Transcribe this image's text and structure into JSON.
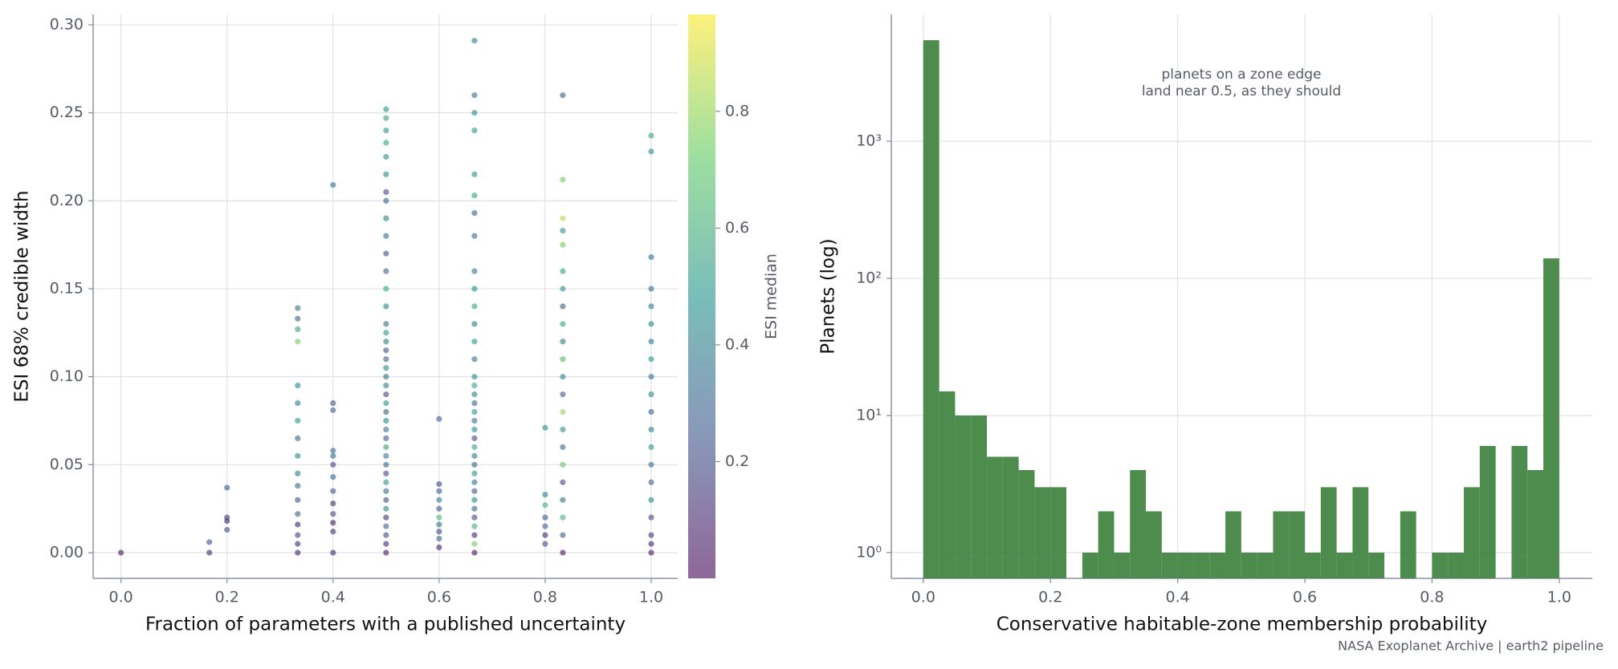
{
  "chart_data": [
    {
      "type": "scatter",
      "x_label": "Fraction of parameters with a published uncertainty",
      "y_label": "ESI 68% credible width",
      "xlim": [
        -0.0525,
        1.05
      ],
      "ylim": [
        -0.0146,
        0.3059
      ],
      "xticks": [
        {
          "value": 0,
          "label": "0.0"
        },
        0.2,
        0.4,
        0.6,
        0.8,
        {
          "value": 1,
          "label": "1.0"
        }
      ],
      "yticks": [
        {
          "value": 0,
          "label": "0.00"
        },
        {
          "value": 0.05,
          "label": "0.05"
        },
        {
          "value": 0.1,
          "label": "0.10"
        },
        {
          "value": 0.15,
          "label": "0.15"
        },
        {
          "value": 0.2,
          "label": "0.20"
        },
        {
          "value": 0.25,
          "label": "0.25"
        },
        {
          "value": 0.3,
          "label": "0.30"
        }
      ],
      "grid": true,
      "colormap": "viridis",
      "colorbar": {
        "label": "ESI median",
        "lim": [
          0,
          0.966
        ],
        "ticks": [
          0.2,
          0.4,
          0.6,
          0.8
        ]
      },
      "x": [
        0,
        0.1667,
        0.1667,
        0.2,
        0.2,
        0.2,
        0.2,
        0.3333,
        0.3333,
        0.3333,
        0.3333,
        0.3333,
        0.3333,
        0.3333,
        0.3333,
        0.3333,
        0.3333,
        0.3333,
        0.3333,
        0.3333,
        0.3333,
        0.3333,
        0.3333,
        0.3333,
        0.4,
        0.4,
        0.4,
        0.4,
        0.4,
        0.4,
        0.4,
        0.4,
        0.4,
        0.4,
        0.4,
        0.4,
        0.4,
        0.5,
        0.5,
        0.5,
        0.5,
        0.5,
        0.5,
        0.5,
        0.5,
        0.5,
        0.5,
        0.5,
        0.5,
        0.5,
        0.5,
        0.5,
        0.5,
        0.5,
        0.5,
        0.5,
        0.5,
        0.5,
        0.5,
        0.5,
        0.5,
        0.5,
        0.5,
        0.5,
        0.5,
        0.5,
        0.5,
        0.5,
        0.5,
        0.5,
        0.5,
        0.5,
        0.5,
        0.5,
        0.5,
        0.5,
        0.5,
        0.5,
        0.6,
        0.6,
        0.6,
        0.6,
        0.6,
        0.6,
        0.6,
        0.6,
        0.6,
        0.6,
        0.6667,
        0.6667,
        0.6667,
        0.6667,
        0.6667,
        0.6667,
        0.6667,
        0.6667,
        0.6667,
        0.6667,
        0.6667,
        0.6667,
        0.6667,
        0.6667,
        0.6667,
        0.6667,
        0.6667,
        0.6667,
        0.6667,
        0.6667,
        0.6667,
        0.6667,
        0.6667,
        0.6667,
        0.6667,
        0.6667,
        0.6667,
        0.6667,
        0.6667,
        0.6667,
        0.6667,
        0.6667,
        0.6667,
        0.6667,
        0.6667,
        0.8,
        0.8,
        0.8,
        0.8,
        0.8,
        0.8,
        0.8,
        0.8333,
        0.8333,
        0.8333,
        0.8333,
        0.8333,
        0.8333,
        0.8333,
        0.8333,
        0.8333,
        0.8333,
        0.8333,
        0.8333,
        0.8333,
        0.8333,
        0.8333,
        0.8333,
        0.8333,
        0.8333,
        0.8333,
        0.8333,
        0.8333,
        0.8333,
        1.0,
        1.0,
        1.0,
        1.0,
        1.0,
        1.0,
        1.0,
        1.0,
        1.0,
        1.0,
        1.0,
        1.0,
        1.0,
        1.0,
        1.0,
        1.0,
        1.0,
        1.0,
        1.0,
        1.0
      ],
      "y": [
        0,
        0,
        0.006,
        0.013,
        0.018,
        0.02,
        0.037,
        0,
        0.005,
        0.01,
        0.016,
        0.022,
        0.03,
        0.038,
        0.045,
        0.055,
        0.065,
        0.075,
        0.085,
        0.095,
        0.12,
        0.127,
        0.133,
        0.139,
        0,
        0.012,
        0.017,
        0.022,
        0.028,
        0.035,
        0.043,
        0.05,
        0.055,
        0.058,
        0.081,
        0.085,
        0.209,
        0,
        0.005,
        0.01,
        0.015,
        0.02,
        0.025,
        0.03,
        0.035,
        0.04,
        0.045,
        0.05,
        0.055,
        0.06,
        0.065,
        0.07,
        0.075,
        0.08,
        0.085,
        0.09,
        0.095,
        0.1,
        0.105,
        0.11,
        0.115,
        0.12,
        0.125,
        0.13,
        0.14,
        0.15,
        0.16,
        0.17,
        0.18,
        0.19,
        0.2,
        0.205,
        0.215,
        0.225,
        0.233,
        0.24,
        0.247,
        0.252,
        0.003,
        0.008,
        0.012,
        0.016,
        0.02,
        0.025,
        0.03,
        0.035,
        0.039,
        0.076,
        0,
        0.005,
        0.01,
        0.015,
        0.02,
        0.025,
        0.03,
        0.035,
        0.04,
        0.045,
        0.05,
        0.055,
        0.06,
        0.065,
        0.07,
        0.075,
        0.08,
        0.085,
        0.09,
        0.095,
        0.1,
        0.11,
        0.12,
        0.13,
        0.14,
        0.15,
        0.16,
        0.18,
        0.193,
        0.203,
        0.215,
        0.24,
        0.25,
        0.26,
        0.291,
        0.005,
        0.01,
        0.015,
        0.02,
        0.027,
        0.033,
        0.071,
        0,
        0.01,
        0.02,
        0.03,
        0.04,
        0.05,
        0.06,
        0.07,
        0.08,
        0.09,
        0.1,
        0.11,
        0.12,
        0.13,
        0.14,
        0.15,
        0.16,
        0.175,
        0.183,
        0.19,
        0.212,
        0.26,
        0,
        0.005,
        0.01,
        0.02,
        0.03,
        0.04,
        0.05,
        0.06,
        0.07,
        0.08,
        0.09,
        0.1,
        0.11,
        0.12,
        0.13,
        0.14,
        0.15,
        0.168,
        0.228,
        0.237
      ],
      "color_values": [
        0.05,
        0.1,
        0.25,
        0.2,
        0.1,
        0.15,
        0.25,
        0.08,
        0.12,
        0.18,
        0.1,
        0.3,
        0.25,
        0.35,
        0.4,
        0.45,
        0.3,
        0.5,
        0.4,
        0.45,
        0.75,
        0.55,
        0.3,
        0.35,
        0.1,
        0.15,
        0.05,
        0.2,
        0.12,
        0.25,
        0.3,
        0.2,
        0.35,
        0.3,
        0.3,
        0.25,
        0.35,
        0.05,
        0.1,
        0.2,
        0.3,
        0.15,
        0.45,
        0.25,
        0.35,
        0.5,
        0.2,
        0.3,
        0.4,
        0.55,
        0.25,
        0.35,
        0.45,
        0.3,
        0.5,
        0.2,
        0.4,
        0.35,
        0.45,
        0.3,
        0.25,
        0.4,
        0.5,
        0.35,
        0.45,
        0.55,
        0.3,
        0.25,
        0.35,
        0.4,
        0.3,
        0.2,
        0.45,
        0.5,
        0.55,
        0.5,
        0.55,
        0.5,
        0.1,
        0.3,
        0.2,
        0.35,
        0.65,
        0.25,
        0.4,
        0.3,
        0.2,
        0.3,
        0.05,
        0.75,
        0.1,
        0.6,
        0.2,
        0.3,
        0.45,
        0.25,
        0.35,
        0.5,
        0.3,
        0.4,
        0.55,
        0.2,
        0.45,
        0.35,
        0.5,
        0.3,
        0.4,
        0.55,
        0.45,
        0.35,
        0.5,
        0.4,
        0.55,
        0.45,
        0.4,
        0.35,
        0.3,
        0.55,
        0.5,
        0.5,
        0.45,
        0.35,
        0.4,
        0.2,
        0.1,
        0.3,
        0.25,
        0.6,
        0.4,
        0.45,
        0.05,
        0.3,
        0.6,
        0.4,
        0.2,
        0.7,
        0.35,
        0.5,
        0.8,
        0.3,
        0.45,
        0.65,
        0.4,
        0.55,
        0.3,
        0.5,
        0.55,
        0.75,
        0.5,
        0.85,
        0.75,
        0.3,
        0.05,
        0.1,
        0.15,
        0.2,
        0.45,
        0.3,
        0.35,
        0.5,
        0.4,
        0.3,
        0.45,
        0.35,
        0.5,
        0.4,
        0.45,
        0.4,
        0.35,
        0.35,
        0.45,
        0.55
      ]
    },
    {
      "type": "histogram",
      "x_label": "Conservative habitable-zone membership probability",
      "y_label": "Planets (log)",
      "annotation": [
        "planets on a zone edge",
        "land near 0.5, as they should"
      ],
      "source": "NASA Exoplanet Archive | earth2 pipeline",
      "log_y": true,
      "color": "#3b7f3b",
      "xlim": [
        -0.0503,
        1.052
      ],
      "ylim": [
        0.649,
        8414
      ],
      "xticks": [
        {
          "value": 0,
          "label": "0.0"
        },
        0.2,
        0.4,
        0.6,
        0.8,
        {
          "value": 1,
          "label": "1.0"
        }
      ],
      "yticks": [
        {
          "value": 1,
          "label": "10⁰"
        },
        {
          "value": 10,
          "label": "10¹"
        },
        {
          "value": 100,
          "label": "10²"
        },
        {
          "value": 1000,
          "label": "10³"
        }
      ],
      "grid": true,
      "bins": [
        0,
        0.025,
        0.05,
        0.075,
        0.1,
        0.125,
        0.15,
        0.175,
        0.2,
        0.225,
        0.25,
        0.275,
        0.3,
        0.325,
        0.35,
        0.375,
        0.4,
        0.425,
        0.45,
        0.475,
        0.5,
        0.525,
        0.55,
        0.575,
        0.6,
        0.625,
        0.65,
        0.675,
        0.7,
        0.725,
        0.75,
        0.775,
        0.8,
        0.825,
        0.85,
        0.875,
        0.9,
        0.925,
        0.95,
        0.975,
        1.0
      ],
      "counts": [
        5460,
        15,
        10,
        10,
        5,
        5,
        4,
        3,
        3,
        0,
        1,
        2,
        1,
        4,
        2,
        1,
        1,
        1,
        1,
        2,
        1,
        1,
        2,
        2,
        1,
        3,
        1,
        3,
        1,
        0,
        2,
        0,
        1,
        1,
        3,
        6,
        0,
        6,
        4,
        140
      ]
    }
  ]
}
